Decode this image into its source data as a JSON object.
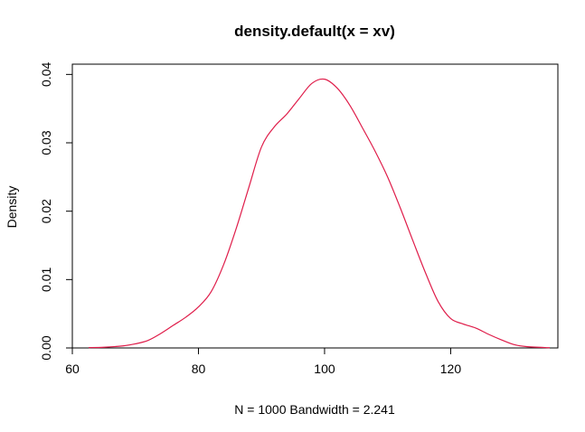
{
  "chart_data": {
    "type": "line",
    "title": "density.default(x = xv)",
    "xlabel": "N = 1000   Bandwidth = 2.241",
    "ylabel": "Density",
    "xlim": [
      60,
      137
    ],
    "ylim": [
      0,
      0.0415
    ],
    "x_ticks": [
      60,
      80,
      100,
      120
    ],
    "x_tick_labels": [
      "60",
      "80",
      "100",
      "120"
    ],
    "y_ticks": [
      0,
      0.01,
      0.02,
      0.03,
      0.04
    ],
    "y_tick_labels": [
      "0.00",
      "0.01",
      "0.02",
      "0.03",
      "0.04"
    ],
    "grid": false,
    "line_color": "#DF1D4A",
    "series": [
      {
        "x": [
          62.6,
          65,
          68,
          70,
          72,
          74,
          76,
          78,
          80,
          82,
          84,
          86,
          88,
          90,
          92,
          94,
          96,
          98,
          100,
          102,
          104,
          106,
          108,
          110,
          112,
          114,
          116,
          118,
          120,
          122,
          124,
          126,
          128,
          130,
          132,
          135.7
        ],
        "y": [
          5e-05,
          0.0001,
          0.0003,
          0.0006,
          0.0011,
          0.0021,
          0.0033,
          0.0045,
          0.006,
          0.0082,
          0.0122,
          0.0175,
          0.0235,
          0.0294,
          0.0323,
          0.0342,
          0.0365,
          0.0387,
          0.0393,
          0.038,
          0.0355,
          0.0322,
          0.0288,
          0.025,
          0.0205,
          0.0157,
          0.011,
          0.0068,
          0.0043,
          0.0035,
          0.0029,
          0.002,
          0.0012,
          0.0005,
          0.0002,
          3e-05
        ]
      }
    ]
  }
}
